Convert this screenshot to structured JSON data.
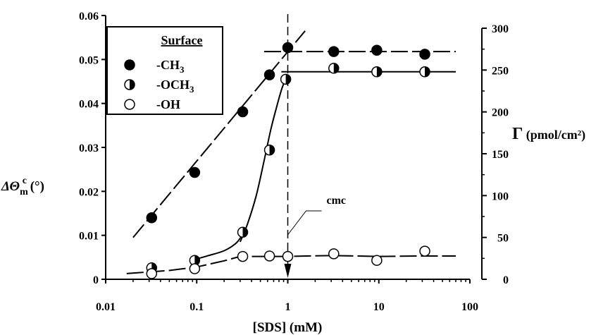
{
  "chart_data": {
    "type": "scatter",
    "x_scale": "log",
    "xlabel_main": "[SDS] (mM)",
    "xlim": [
      0.01,
      100
    ],
    "x_ticks": [
      "0.01",
      "0.1",
      "1",
      "10",
      "100"
    ],
    "x_tick_values": [
      0.01,
      0.1,
      1,
      10,
      100
    ],
    "left_axis": {
      "label_main": "ΔΘ",
      "label_sub": "m",
      "label_sup": "c",
      "label_unit": " (°)",
      "ylim": [
        0,
        0.06
      ],
      "ticks": [
        "0",
        "0.01",
        "0.02",
        "0.03",
        "0.04",
        "0.05",
        "0.06"
      ],
      "tick_values": [
        0,
        0.01,
        0.02,
        0.03,
        0.04,
        0.05,
        0.06
      ]
    },
    "right_axis": {
      "label_main": "Γ",
      "label_unit": " (pmol/cm²)",
      "ylim": [
        0,
        300
      ],
      "ticks": [
        "0",
        "50",
        "100",
        "150",
        "200",
        "250",
        "300"
      ],
      "tick_values": [
        0,
        50,
        100,
        150,
        200,
        250,
        300
      ]
    },
    "legend": {
      "title": "Surface",
      "placement": "top-left",
      "entries": [
        {
          "label_main": "-CH",
          "label_sub": "3",
          "marker": "filled"
        },
        {
          "label_main": "-OCH",
          "label_sub": "3",
          "marker": "half"
        },
        {
          "label_main": "-OH",
          "label_sub": "",
          "marker": "open"
        }
      ]
    },
    "series": [
      {
        "marker": "filled",
        "x": [
          0.032,
          0.095,
          0.32,
          0.63,
          1.0,
          3.2,
          9.5,
          32
        ],
        "y": [
          0.014,
          0.0243,
          0.0381,
          0.0465,
          0.0527,
          0.0518,
          0.0521,
          0.0512
        ]
      },
      {
        "marker": "half",
        "x": [
          0.032,
          0.095,
          0.32,
          0.63,
          0.95,
          3.2,
          9.5,
          32
        ],
        "y": [
          0.0026,
          0.0043,
          0.0107,
          0.0294,
          0.0455,
          0.048,
          0.0472,
          0.0472
        ]
      },
      {
        "marker": "open",
        "x": [
          0.032,
          0.095,
          0.32,
          0.63,
          1.0,
          3.2,
          9.5,
          32
        ],
        "y": [
          0.0013,
          0.0024,
          0.0052,
          0.0053,
          0.0052,
          0.0058,
          0.0043,
          0.0064
        ]
      }
    ],
    "fit_lines": [
      {
        "style": "long-dash",
        "x": [
          0.02,
          1.55
        ],
        "y": [
          0.0095,
          0.0565
        ]
      },
      {
        "style": "long-dash",
        "x": [
          0.55,
          70
        ],
        "y": [
          0.0518,
          0.0518
        ]
      },
      {
        "style": "solid-curve",
        "x": [
          0.3,
          0.36,
          0.45,
          0.55,
          0.65,
          0.75,
          0.85,
          0.95
        ],
        "y": [
          0.0085,
          0.0125,
          0.019,
          0.027,
          0.034,
          0.039,
          0.043,
          0.0457
        ]
      },
      {
        "style": "solid-curve",
        "x": [
          0.085,
          0.13,
          0.2,
          0.27,
          0.32
        ],
        "y": [
          0.0042,
          0.0053,
          0.0065,
          0.0082,
          0.0102
        ]
      },
      {
        "style": "solid",
        "x": [
          0.85,
          70
        ],
        "y": [
          0.0472,
          0.0472
        ]
      },
      {
        "style": "long-dash",
        "x": [
          0.017,
          0.05,
          0.1,
          0.2,
          0.3,
          0.5,
          1.0,
          3.0,
          10,
          30,
          70
        ],
        "y": [
          0.0013,
          0.002,
          0.0028,
          0.0042,
          0.0052,
          0.0052,
          0.0052,
          0.0054,
          0.0052,
          0.0053,
          0.0053
        ]
      }
    ],
    "cmc": {
      "label": "cmc",
      "x": 1.0
    }
  }
}
